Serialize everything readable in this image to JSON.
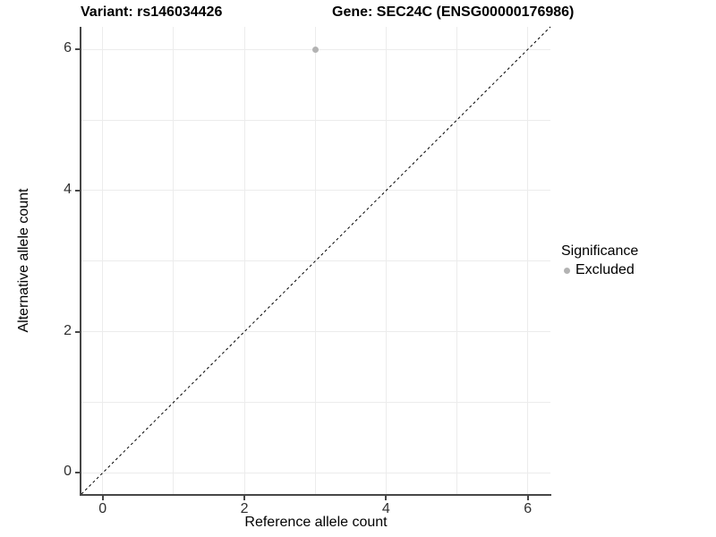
{
  "chart_data": {
    "type": "scatter",
    "title_variant": "Variant: rs146034426",
    "title_gene": "Gene: SEC24C (ENSG00000176986)",
    "xlabel": "Reference allele count",
    "ylabel": "Alternative allele count",
    "xlim": [
      -0.3,
      6.32
    ],
    "ylim": [
      -0.3,
      6.32
    ],
    "x_ticks": [
      0,
      2,
      4,
      6
    ],
    "y_ticks": [
      0,
      2,
      4,
      6
    ],
    "x_gridlines": [
      0,
      1,
      2,
      3,
      4,
      5,
      6
    ],
    "y_gridlines": [
      0,
      1,
      2,
      3,
      4,
      5,
      6
    ],
    "points": [
      {
        "x": 3,
        "y": 6,
        "significance": "Excluded"
      }
    ],
    "identity_line": {
      "slope": 1,
      "intercept": 0,
      "style": "dashed",
      "color": "#000000"
    },
    "legend": {
      "title": "Significance",
      "position": "right",
      "items": [
        {
          "label": "Excluded",
          "color": "#b3b3b3"
        }
      ]
    },
    "grid": true
  },
  "colors": {
    "point": "#b3b3b3",
    "gridline": "#ececec",
    "axis": "#474747",
    "background": "#ffffff",
    "text": "#000000"
  }
}
